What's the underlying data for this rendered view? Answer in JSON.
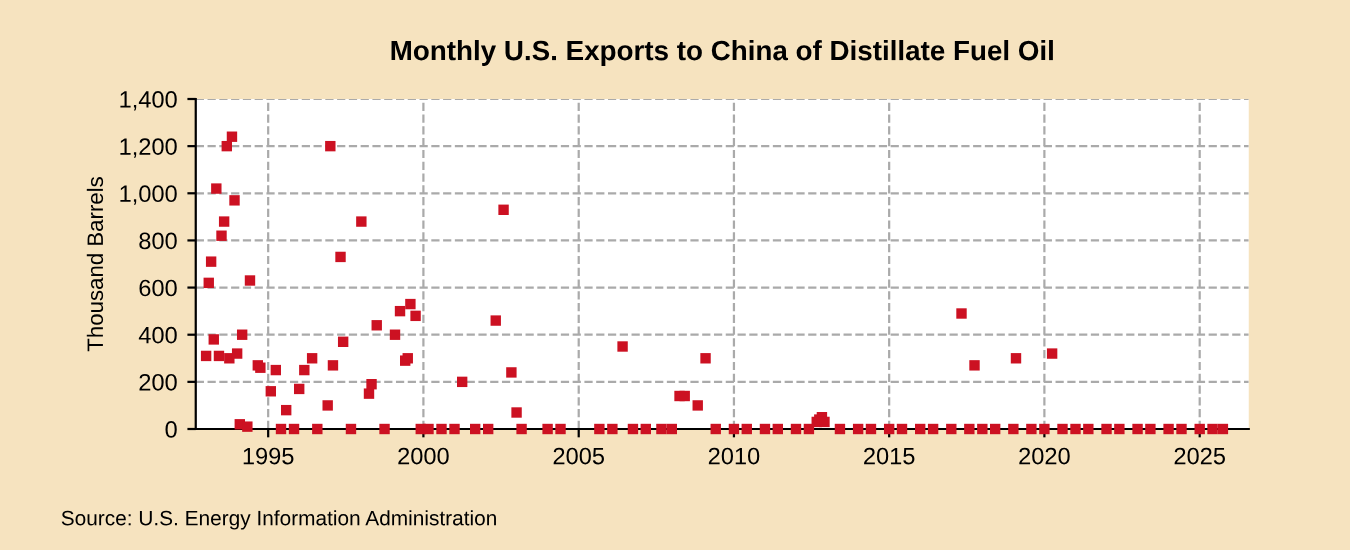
{
  "chart_data": {
    "type": "scatter",
    "title": "Monthly U.S. Exports to China of Distillate Fuel Oil",
    "ylabel": "Thousand Barrels",
    "annotations": [
      "Source: U.S. Energy Information Administration"
    ],
    "x": [
      "1993-01",
      "1993-02",
      "1993-03",
      "1993-04",
      "1993-05",
      "1993-06",
      "1993-07",
      "1993-08",
      "1993-09",
      "1993-10",
      "1993-11",
      "1993-12",
      "1994-01",
      "1994-02",
      "1994-03",
      "1994-05",
      "1994-06",
      "1994-09",
      "1994-10",
      "1995-02",
      "1995-04",
      "1995-06",
      "1995-08",
      "1995-11",
      "1996-01",
      "1996-03",
      "1996-06",
      "1996-08",
      "1996-12",
      "1997-01",
      "1997-02",
      "1997-05",
      "1997-06",
      "1997-09",
      "1998-01",
      "1998-04",
      "1998-05",
      "1998-07",
      "1998-10",
      "1999-02",
      "1999-04",
      "1999-06",
      "1999-07",
      "1999-08",
      "1999-10",
      "1999-12",
      "2000-03",
      "2000-08",
      "2001-01",
      "2001-04",
      "2001-09",
      "2002-02",
      "2002-05",
      "2002-08",
      "2002-11",
      "2003-01",
      "2003-03",
      "2004-01",
      "2004-06",
      "2005-09",
      "2006-02",
      "2006-06",
      "2006-10",
      "2007-03",
      "2007-09",
      "2008-01",
      "2008-04",
      "2008-06",
      "2008-11",
      "2009-02",
      "2009-06",
      "2010-01",
      "2010-06",
      "2011-01",
      "2011-06",
      "2012-01",
      "2012-06",
      "2012-09",
      "2012-10",
      "2012-11",
      "2012-12",
      "2013-06",
      "2014-01",
      "2014-06",
      "2015-01",
      "2015-06",
      "2016-01",
      "2016-06",
      "2017-01",
      "2017-05",
      "2017-08",
      "2017-10",
      "2018-01",
      "2018-06",
      "2019-01",
      "2019-02",
      "2019-08",
      "2020-01",
      "2020-04",
      "2020-08",
      "2021-01",
      "2021-06",
      "2022-01",
      "2022-06",
      "2023-01",
      "2023-06",
      "2024-01",
      "2024-06",
      "2025-01",
      "2025-06",
      "2025-10"
    ],
    "series": [
      {
        "color": "#cc1122",
        "values": [
          310,
          620,
          710,
          380,
          1020,
          310,
          820,
          880,
          1200,
          300,
          1240,
          970,
          320,
          20,
          400,
          10,
          630,
          270,
          260,
          160,
          250,
          0,
          80,
          0,
          170,
          250,
          300,
          0,
          100,
          1200,
          270,
          730,
          370,
          0,
          880,
          150,
          190,
          440,
          0,
          400,
          500,
          290,
          300,
          530,
          480,
          0,
          0,
          0,
          0,
          200,
          0,
          0,
          460,
          930,
          240,
          70,
          0,
          0,
          0,
          0,
          0,
          350,
          0,
          0,
          0,
          0,
          140,
          140,
          100,
          300,
          0,
          0,
          0,
          0,
          0,
          0,
          0,
          30,
          40,
          50,
          30,
          0,
          0,
          0,
          0,
          0,
          0,
          0,
          0,
          490,
          0,
          270,
          0,
          0,
          0,
          300,
          0,
          0,
          320,
          0,
          0,
          0,
          0,
          0,
          0,
          0,
          0,
          0,
          0,
          0,
          0
        ]
      }
    ],
    "marker": "square",
    "xlim": [
      "1992-09",
      "2026-08"
    ],
    "xticks": [
      "1995",
      "2000",
      "2005",
      "2010",
      "2015",
      "2020",
      "2025"
    ],
    "ylim": [
      0,
      1400
    ],
    "yticks": [
      0,
      200,
      400,
      600,
      800,
      {
        "value": 1000,
        "label": "1,000"
      },
      {
        "value": 1200,
        "label": "1,200"
      },
      {
        "value": 1400,
        "label": "1,400"
      }
    ],
    "grid": true,
    "legend": false
  }
}
